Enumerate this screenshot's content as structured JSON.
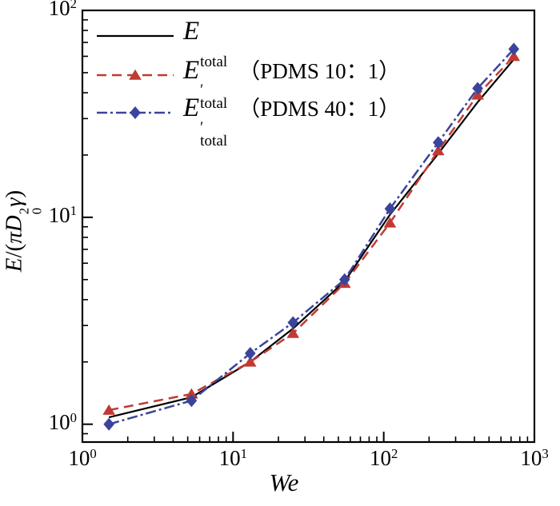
{
  "figure": {
    "background": "#ffffff",
    "frame_color": "#000000",
    "ylabel_parts": {
      "e": "E",
      "open": "/(",
      "pi": "π",
      "d": "D",
      "sup": "2",
      "sub": "0",
      "gamma": "γ",
      "close": ")"
    }
  },
  "axes": {
    "x": {
      "label": "We",
      "scale": "log",
      "min": 1,
      "max": 1000,
      "tick_base": "10",
      "tick_exponents": [
        0,
        1,
        2,
        3
      ]
    },
    "y": {
      "label": "E/(πD₀²γ)",
      "scale": "log",
      "min": 0.82,
      "max": 100,
      "tick_base": "10",
      "tick_exponents": [
        0,
        1,
        2
      ]
    }
  },
  "legend": {
    "items": [
      {
        "symbol": "E",
        "prime": "",
        "subscript": "total",
        "note": ""
      },
      {
        "symbol": "E",
        "prime": "′",
        "subscript": "total",
        "note": "（PDMS 10：1）"
      },
      {
        "symbol": "E",
        "prime": "′",
        "subscript": "total",
        "note": "（PDMS 40：1）"
      }
    ]
  },
  "chart_data": {
    "type": "line",
    "title": "",
    "xlabel": "We",
    "ylabel": "E/(πD₀²γ)",
    "x_scale": "log",
    "y_scale": "log",
    "xlim": [
      1,
      1000
    ],
    "ylim": [
      0.82,
      100
    ],
    "grid": false,
    "legend_position": "top-left",
    "x": [
      1.5,
      5.3,
      13,
      25,
      55,
      110,
      230,
      420,
      730
    ],
    "series": [
      {
        "name": "E_total",
        "color": "#000000",
        "line_style": "solid",
        "marker": "none",
        "values": [
          1.08,
          1.35,
          2.0,
          2.9,
          4.9,
          10.3,
          20.3,
          36,
          58
        ]
      },
      {
        "name": "E′_total (PDMS 10:1)",
        "color": "#c13a32",
        "line_style": "dashed",
        "marker": "triangle",
        "values": [
          1.17,
          1.4,
          2.0,
          2.75,
          4.8,
          9.4,
          21,
          39,
          60
        ]
      },
      {
        "name": "E′_total (PDMS 40:1)",
        "color": "#3b449c",
        "line_style": "dash-dot",
        "marker": "diamond",
        "values": [
          1.0,
          1.3,
          2.2,
          3.1,
          5.0,
          11,
          23,
          42,
          65
        ]
      }
    ]
  }
}
